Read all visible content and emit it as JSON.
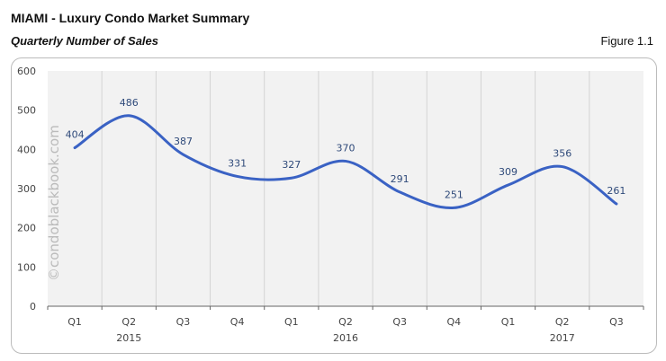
{
  "header": {
    "title": "MIAMI - Luxury Condo Market Summary",
    "subtitle": "Quarterly Number of Sales",
    "figure": "Figure 1.1"
  },
  "watermark": "©condoblackbook.com",
  "chart_data": {
    "type": "line",
    "title": "Quarterly Number of Sales",
    "categories": [
      "Q1",
      "Q2",
      "Q3",
      "Q4",
      "Q1",
      "Q2",
      "Q3",
      "Q4",
      "Q1",
      "Q2",
      "Q3"
    ],
    "years": [
      {
        "label": "2015",
        "index": 1
      },
      {
        "label": "2016",
        "index": 5
      },
      {
        "label": "2017",
        "index": 9
      }
    ],
    "values": [
      404,
      486,
      387,
      331,
      327,
      370,
      291,
      251,
      309,
      356,
      261
    ],
    "ylim": [
      0,
      600
    ],
    "yticks": [
      0,
      100,
      200,
      300,
      400,
      500,
      600
    ],
    "grid": "vertical",
    "line_color": "#3a62c4",
    "label_color": "#2f4a7a"
  }
}
